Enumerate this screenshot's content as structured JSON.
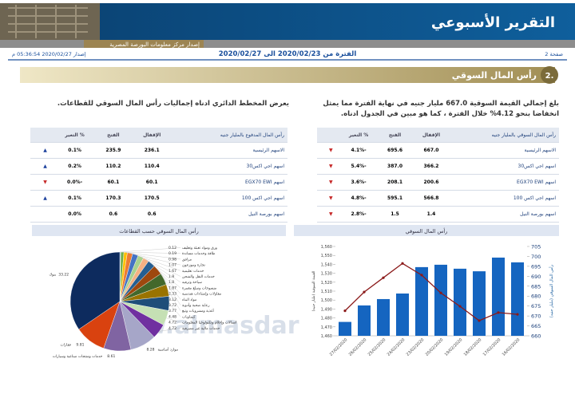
{
  "header": {
    "title": "التقرير الأسبوعي",
    "subtitle": "إصدار مركز معلومات البورصة المصرية"
  },
  "info": {
    "page": "صفحة 2",
    "period": "الفترة من 2020/02/23 الى 2020/02/27",
    "issued": "إصدار 2020/02/27 05:36:54 م"
  },
  "section": {
    "number": "2.",
    "title": "رأس المال السوقي"
  },
  "paragraphs": [
    "بلغ إجمالي القيمة السوقية 667.0 مليار جنيه في نهاية الفترة مما يمثل انخفاضا بنحو 4.12% خلال الفترة ، كما هو مبين في الجدول ادناه.",
    "يعرض المخطط الدائري ادناه إجماليات رأس المال السوقي للقطاعات."
  ],
  "tables": [
    {
      "columns": [
        "رأس المال السوقي بالمليار جنيه",
        "الإقفال",
        "الفتح",
        "% التغير"
      ],
      "rows": [
        [
          "الاسهم الرئيسية",
          "667.0",
          "695.6",
          "-4.1%"
        ],
        [
          "اسهم اجي اكس30",
          "366.2",
          "387.0",
          "-5.4%"
        ],
        [
          "اسهم EGX70 EWI",
          "200.6",
          "208.1",
          "-3.6%"
        ],
        [
          "اسهم اجي اكس 100",
          "566.8",
          "595.1",
          "-4.8%"
        ],
        [
          "اسهم بورصة النيل",
          "1.4",
          "1.5",
          "-2.8%"
        ]
      ]
    },
    {
      "columns": [
        "رأس المال المدفوع بالمليار جنيه",
        "الإقفال",
        "الفتح",
        "% التغير"
      ],
      "rows": [
        [
          "الاسهم الرئيسية",
          "236.1",
          "235.9",
          "0.1%"
        ],
        [
          "اسهم اجي اكس30",
          "110.4",
          "110.2",
          "0.2%"
        ],
        [
          "اسهم EGX70 EWI",
          "60.1",
          "60.1",
          "-0.0%"
        ],
        [
          "اسهم اجي اكس 100",
          "170.5",
          "170.3",
          "0.1%"
        ],
        [
          "اسهم بورصة النيل",
          "0.6",
          "0.6",
          "0.0%"
        ]
      ]
    }
  ],
  "watermark": "www.almasdar",
  "chart_data": [
    {
      "type": "bar",
      "title": "رأس المال السوقي",
      "x": [
        "27/02/2020",
        "26/02/2020",
        "25/02/2020",
        "24/02/2020",
        "23/02/2020",
        "20/02/2020",
        "19/02/2020",
        "18/02/2020",
        "17/02/2020",
        "16/02/2020"
      ],
      "ylabel": "القيمة السوقية (مليار جنيه)",
      "y2label": "رأس المال السوقي (مليار جنيه)",
      "series": [
        {
          "type": "bar",
          "axis": "y2",
          "color": "#1565c0",
          "values": [
            667.0,
            675.3,
            678.5,
            681.3,
            694.6,
            695.8,
            693.8,
            692.5,
            699.4,
            697.0
          ]
        },
        {
          "type": "line",
          "color": "#8b1a1a",
          "values": [
            1488,
            1509,
            1525,
            1541,
            1528,
            1508,
            1493,
            1477,
            1486,
            1484
          ]
        }
      ],
      "ylim": [
        1460,
        1560
      ],
      "yticks": [
        {
          "value": 1460,
          "label": "1,460"
        },
        {
          "value": 1470,
          "label": "1,470"
        },
        {
          "value": 1480,
          "label": "1,480"
        },
        {
          "value": 1490,
          "label": "1,490"
        },
        {
          "value": 1500,
          "label": "1,500"
        },
        {
          "value": 1510,
          "label": "1,510"
        },
        {
          "value": 1520,
          "label": "1,520"
        },
        {
          "value": 1530,
          "label": "1,530"
        },
        {
          "value": 1540,
          "label": "1,540"
        },
        {
          "value": 1550,
          "label": "1,550"
        },
        {
          "value": 1560,
          "label": "1,560"
        }
      ],
      "y2lim": [
        660,
        705
      ],
      "y2ticks": [
        660,
        665,
        670,
        675,
        680,
        685,
        690,
        695,
        700,
        705
      ]
    },
    {
      "type": "pie",
      "title": "رأس المال السوقي حسب القطاعات",
      "categories": [
        "ورق ومواد تعبئة وتغليف",
        "طاقة وخدمات مساندة",
        "مرافق",
        "تجارة وموزعون",
        "خدمات تعليمية",
        "خدمات النقل والشحن",
        "سياحة وترفيه",
        "منسوجات وسلع معمرة",
        "مقاولات وإنشاءات هندسية",
        "مواد البناء",
        "رعاية صحية وأدوية",
        "أغذية ومشروبات وتبغ",
        "كيماويات",
        "اتصالات وإعلام وتكنولوجيا المعلومات",
        "خدمات مالية غير مصرفية",
        "موارد أساسية",
        "خدمات ومنتجات صناعية وسيارات",
        "عقارات",
        "بنوك"
      ],
      "values": [
        0.12,
        0.19,
        0.98,
        1.07,
        1.67,
        1.8,
        1.8,
        1.87,
        2.33,
        3.12,
        3.72,
        3.77,
        4.48,
        4.72,
        4.72,
        8.28,
        8.61,
        9.81,
        33.22
      ],
      "colors": [
        "#5b9bd5",
        "#2e75b6",
        "#70ad47",
        "#ffc000",
        "#ed7d31",
        "#4472c4",
        "#a9d18e",
        "#f4b183",
        "#255e91",
        "#9e480e",
        "#43682b",
        "#997300",
        "#1f4e79",
        "#c5e0b4",
        "#7030a0",
        "#a6a6c8",
        "#8064a2",
        "#d9420f",
        "#0d2b5e"
      ]
    }
  ]
}
